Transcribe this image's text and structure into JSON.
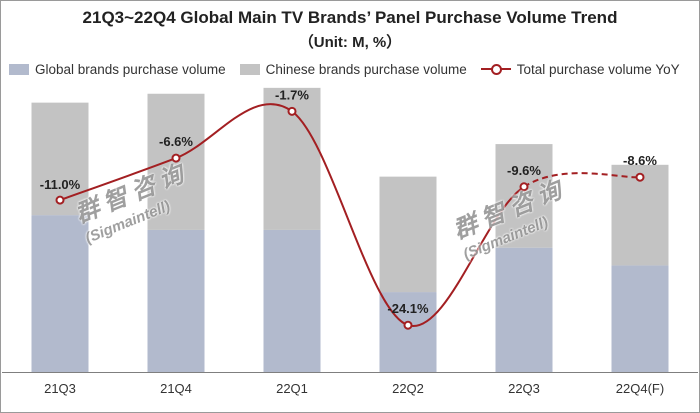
{
  "chart_data": {
    "type": "bar",
    "title": "21Q3~22Q4 Global Main TV Brands’ Panel Purchase Volume Trend",
    "subtitle": "（Unit: M, %）",
    "categories": [
      "21Q3",
      "21Q4",
      "22Q1",
      "22Q2",
      "22Q3",
      "22Q4(F)"
    ],
    "series": [
      {
        "name": "Global brands purchase volume",
        "type": "bar",
        "stack": "purchase",
        "color": "#b2bacd",
        "values": [
          26.5,
          24.0,
          24.0,
          13.5,
          21.0,
          18.0
        ]
      },
      {
        "name": "Chinese brands purchase volume",
        "type": "bar",
        "stack": "purchase",
        "color": "#c3c3c3",
        "values": [
          19.0,
          23.0,
          24.0,
          19.5,
          17.5,
          17.0
        ]
      },
      {
        "name": "Total purchase volume YoY",
        "type": "line",
        "axis": "secondary",
        "color": "#a31f22",
        "values": [
          -11.0,
          -6.6,
          -1.7,
          -24.1,
          -9.6,
          -8.6
        ],
        "labels": [
          "-11.0%",
          "-6.6%",
          "-1.7%",
          "-24.1%",
          "-9.6%",
          "-8.6%"
        ],
        "forecast_from": "22Q3"
      }
    ],
    "ylim": [
      0,
      50
    ],
    "y2lim": [
      -29,
      2
    ],
    "grid": false,
    "legend": "top"
  },
  "watermarks": [
    {
      "cn": "群智咨询",
      "en": "(Sigmaintell)"
    },
    {
      "cn": "群智咨询",
      "en": "(Sigmaintell)"
    }
  ]
}
